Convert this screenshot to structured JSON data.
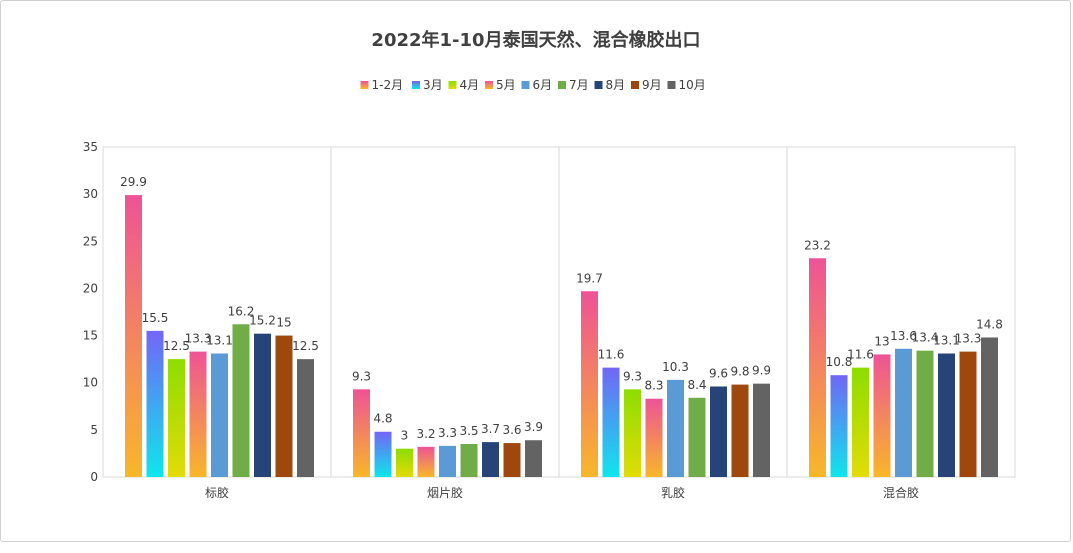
{
  "chart_data": {
    "type": "bar",
    "title": "2022年1-10月泰国天然、混合橡胶出口",
    "xlabel": "",
    "ylabel": "",
    "ylim": [
      0,
      35
    ],
    "yticks": [
      "0",
      "5",
      "10",
      "15",
      "20",
      "25",
      "30",
      "35"
    ],
    "grid": false,
    "legend_position": "top",
    "categories": [
      "标胶",
      "烟片胶",
      "乳胶",
      "混合胶"
    ],
    "series": [
      {
        "name": "1-2月",
        "values": [
          29.9,
          9.3,
          19.7,
          23.2
        ],
        "color": [
          "#ee5396",
          "#f8b72a"
        ]
      },
      {
        "name": "3月",
        "values": [
          15.5,
          4.8,
          11.6,
          10.8
        ],
        "color": [
          "#7266f6",
          "#0fe6ec"
        ]
      },
      {
        "name": "4月",
        "values": [
          12.5,
          3,
          9.3,
          11.6
        ],
        "color": [
          "#8ddd00",
          "#e2dc08"
        ]
      },
      {
        "name": "5月",
        "values": [
          13.3,
          3.2,
          8.3,
          13
        ],
        "color": [
          "#ee5396",
          "#f8b72a"
        ]
      },
      {
        "name": "6月",
        "values": [
          13.1,
          3.3,
          10.3,
          13.6
        ],
        "color": [
          "#5b9bd5"
        ]
      },
      {
        "name": "7月",
        "values": [
          16.2,
          3.5,
          8.4,
          13.4
        ],
        "color": [
          "#70ad47"
        ]
      },
      {
        "name": "8月",
        "values": [
          15.2,
          3.7,
          9.6,
          13.1
        ],
        "color": [
          "#264478"
        ]
      },
      {
        "name": "9月",
        "values": [
          15,
          3.6,
          9.8,
          13.3
        ],
        "color": [
          "#9e480e"
        ]
      },
      {
        "name": "10月",
        "values": [
          12.5,
          3.9,
          9.9,
          14.8
        ],
        "color": [
          "#636363"
        ]
      }
    ]
  }
}
